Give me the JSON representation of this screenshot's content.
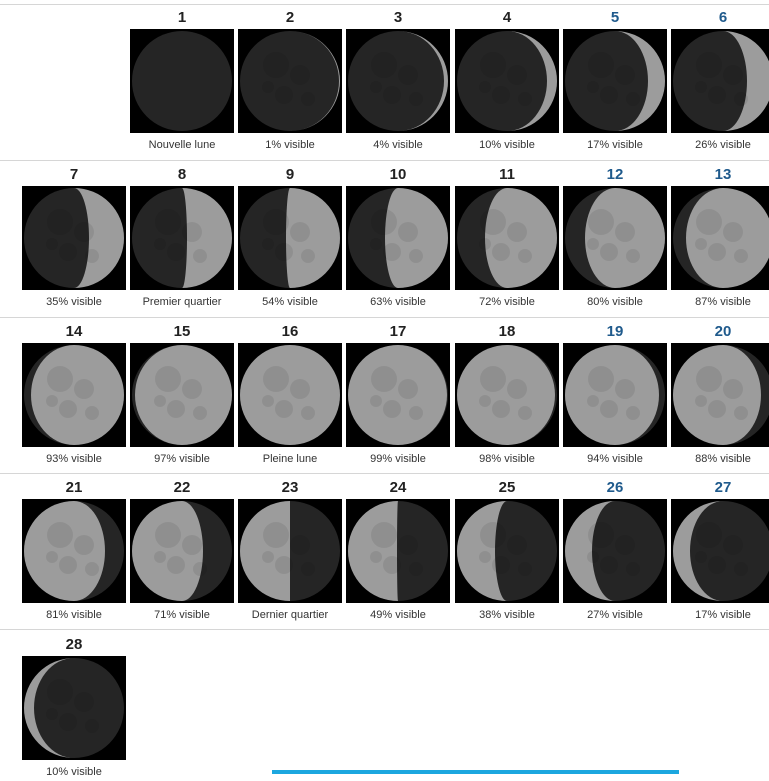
{
  "colors": {
    "tile_background": "#000000",
    "moon_dark": "#252525",
    "moon_lit": "#9c9c9c",
    "weekend_day": "#1f5a8c",
    "progress_bar": "#1ca7df"
  },
  "phases": [
    {
      "day": "1",
      "label": "Nouvelle lune",
      "lit_fraction": 0.0,
      "waxing": true,
      "weekend": false
    },
    {
      "day": "2",
      "label": "1% visible",
      "lit_fraction": 0.01,
      "waxing": true,
      "weekend": false
    },
    {
      "day": "3",
      "label": "4% visible",
      "lit_fraction": 0.04,
      "waxing": true,
      "weekend": false
    },
    {
      "day": "4",
      "label": "10% visible",
      "lit_fraction": 0.1,
      "waxing": true,
      "weekend": false
    },
    {
      "day": "5",
      "label": "17% visible",
      "lit_fraction": 0.17,
      "waxing": true,
      "weekend": true
    },
    {
      "day": "6",
      "label": "26% visible",
      "lit_fraction": 0.26,
      "waxing": true,
      "weekend": true
    },
    {
      "day": "7",
      "label": "35% visible",
      "lit_fraction": 0.35,
      "waxing": true,
      "weekend": false
    },
    {
      "day": "8",
      "label": "Premier quartier",
      "lit_fraction": 0.45,
      "waxing": true,
      "weekend": false
    },
    {
      "day": "9",
      "label": "54% visible",
      "lit_fraction": 0.54,
      "waxing": true,
      "weekend": false
    },
    {
      "day": "10",
      "label": "63% visible",
      "lit_fraction": 0.63,
      "waxing": true,
      "weekend": false
    },
    {
      "day": "11",
      "label": "72% visible",
      "lit_fraction": 0.72,
      "waxing": true,
      "weekend": false
    },
    {
      "day": "12",
      "label": "80% visible",
      "lit_fraction": 0.8,
      "waxing": true,
      "weekend": true
    },
    {
      "day": "13",
      "label": "87% visible",
      "lit_fraction": 0.87,
      "waxing": true,
      "weekend": true
    },
    {
      "day": "14",
      "label": "93% visible",
      "lit_fraction": 0.93,
      "waxing": true,
      "weekend": false
    },
    {
      "day": "15",
      "label": "97% visible",
      "lit_fraction": 0.97,
      "waxing": true,
      "weekend": false
    },
    {
      "day": "16",
      "label": "Pleine lune",
      "lit_fraction": 1.0,
      "waxing": true,
      "weekend": false
    },
    {
      "day": "17",
      "label": "99% visible",
      "lit_fraction": 0.99,
      "waxing": false,
      "weekend": false
    },
    {
      "day": "18",
      "label": "98% visible",
      "lit_fraction": 0.98,
      "waxing": false,
      "weekend": false
    },
    {
      "day": "19",
      "label": "94% visible",
      "lit_fraction": 0.94,
      "waxing": false,
      "weekend": true
    },
    {
      "day": "20",
      "label": "88% visible",
      "lit_fraction": 0.88,
      "waxing": false,
      "weekend": true
    },
    {
      "day": "21",
      "label": "81% visible",
      "lit_fraction": 0.81,
      "waxing": false,
      "weekend": false
    },
    {
      "day": "22",
      "label": "71% visible",
      "lit_fraction": 0.71,
      "waxing": false,
      "weekend": false
    },
    {
      "day": "23",
      "label": "Dernier quartier",
      "lit_fraction": 0.5,
      "waxing": false,
      "weekend": false
    },
    {
      "day": "24",
      "label": "49% visible",
      "lit_fraction": 0.49,
      "waxing": false,
      "weekend": false
    },
    {
      "day": "25",
      "label": "38% visible",
      "lit_fraction": 0.38,
      "waxing": false,
      "weekend": false
    },
    {
      "day": "26",
      "label": "27% visible",
      "lit_fraction": 0.27,
      "waxing": false,
      "weekend": true
    },
    {
      "day": "27",
      "label": "17% visible",
      "lit_fraction": 0.17,
      "waxing": false,
      "weekend": true
    },
    {
      "day": "28",
      "label": "10% visible",
      "lit_fraction": 0.1,
      "waxing": false,
      "weekend": false
    }
  ]
}
